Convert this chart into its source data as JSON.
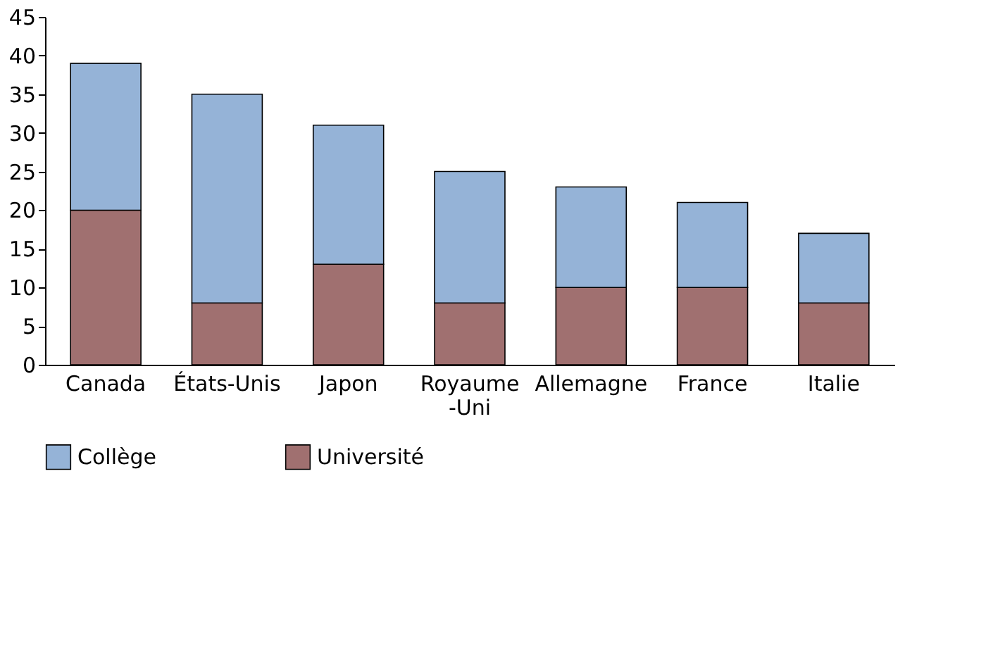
{
  "chart_data": {
    "type": "bar",
    "stacked": true,
    "categories": [
      "Canada",
      "États-Unis",
      "Japon",
      "Royaume-Uni",
      "Allemagne",
      "France",
      "Italie"
    ],
    "series": [
      {
        "name": "Université",
        "color": "#a07070",
        "values": [
          20,
          8,
          13,
          8,
          10,
          10,
          8
        ]
      },
      {
        "name": "Collège",
        "color": "#95b3d7",
        "values": [
          19,
          27,
          18,
          17,
          13,
          11,
          9
        ]
      }
    ],
    "ylim": [
      0,
      45
    ],
    "yticks": [
      0,
      5,
      10,
      15,
      20,
      25,
      30,
      35,
      40,
      45
    ],
    "grid": false,
    "legend": "bottom"
  }
}
